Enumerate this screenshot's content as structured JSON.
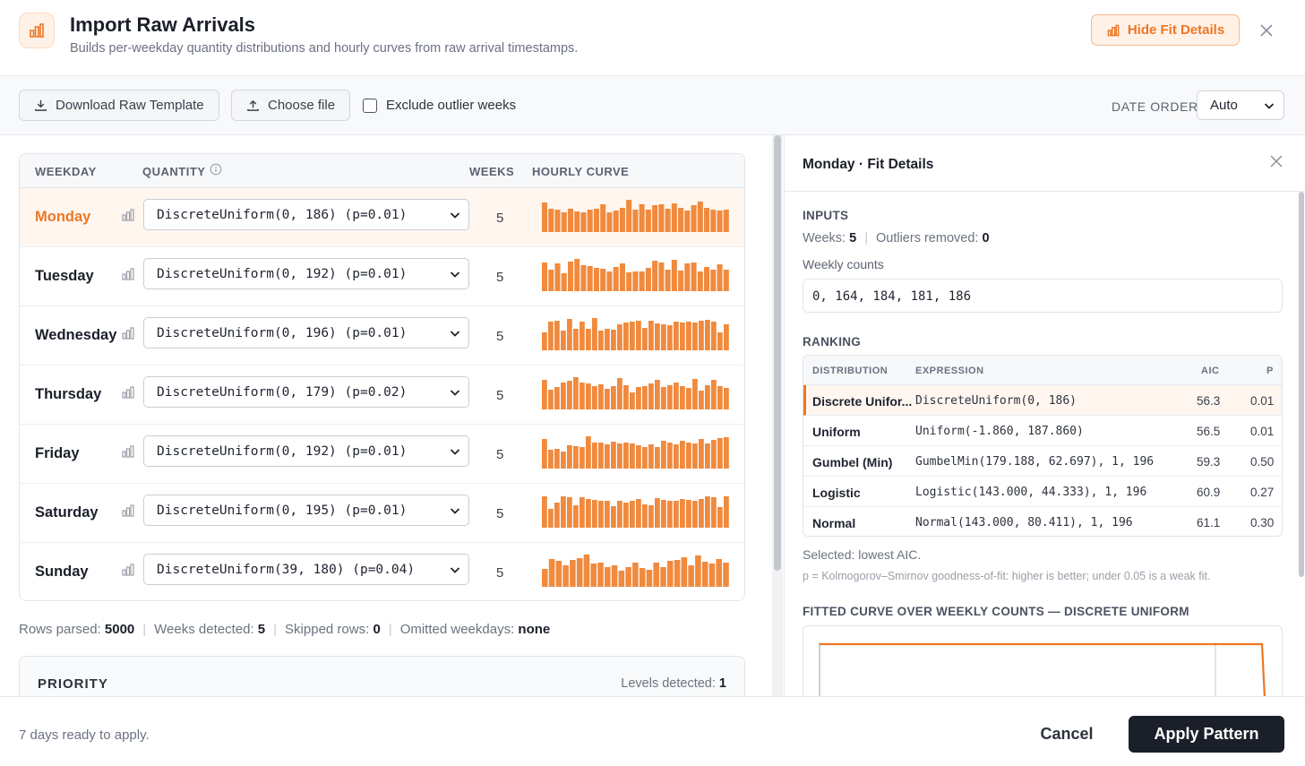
{
  "header": {
    "title": "Import Raw Arrivals",
    "subtitle": "Builds per-weekday quantity distributions and hourly curves from raw arrival timestamps.",
    "hide_fit_label": "Hide Fit Details",
    "icon": "bar-chart-icon",
    "accent": "#ee7623"
  },
  "toolbar": {
    "download_label": "Download Raw Template",
    "choose_label": "Choose file",
    "exclude_label": "Exclude outlier weeks",
    "exclude_checked": false,
    "date_order_label": "DATE ORDER",
    "date_order_value": "Auto"
  },
  "table": {
    "headers": {
      "weekday": "WEEKDAY",
      "quantity": "QUANTITY",
      "weeks": "WEEKS",
      "curve": "HOURLY CURVE"
    },
    "rows": [
      {
        "day": "Monday",
        "dist": "DiscreteUniform(0, 186) (p=0.01)",
        "weeks": "5",
        "active": true,
        "curve": [
          0.92,
          0.72,
          0.7,
          0.6,
          0.72,
          0.64,
          0.6,
          0.7,
          0.72,
          0.86,
          0.62,
          0.66,
          0.76,
          1.0,
          0.7,
          0.86,
          0.7,
          0.82,
          0.86,
          0.72,
          0.9,
          0.76,
          0.66,
          0.84,
          0.94,
          0.74,
          0.7,
          0.66,
          0.7
        ]
      },
      {
        "day": "Tuesday",
        "dist": "DiscreteUniform(0, 192) (p=0.01)",
        "weeks": "5",
        "active": false,
        "curve": [
          0.88,
          0.66,
          0.86,
          0.56,
          0.92,
          1.0,
          0.8,
          0.78,
          0.72,
          0.7,
          0.62,
          0.76,
          0.86,
          0.58,
          0.6,
          0.62,
          0.72,
          0.94,
          0.88,
          0.66,
          0.96,
          0.64,
          0.86,
          0.88,
          0.6,
          0.74,
          0.68,
          0.82,
          0.66
        ]
      },
      {
        "day": "Wednesday",
        "dist": "DiscreteUniform(0, 196) (p=0.01)",
        "weeks": "5",
        "active": false,
        "curve": [
          0.56,
          0.88,
          0.92,
          0.6,
          0.96,
          0.68,
          0.9,
          0.66,
          1.0,
          0.62,
          0.66,
          0.64,
          0.8,
          0.86,
          0.9,
          0.92,
          0.7,
          0.92,
          0.84,
          0.8,
          0.78,
          0.9,
          0.86,
          0.9,
          0.86,
          0.92,
          0.94,
          0.88,
          0.56,
          0.8
        ]
      },
      {
        "day": "Thursday",
        "dist": "DiscreteUniform(0, 179) (p=0.02)",
        "weeks": "5",
        "active": false,
        "curve": [
          0.92,
          0.62,
          0.7,
          0.82,
          0.9,
          1.0,
          0.82,
          0.8,
          0.72,
          0.78,
          0.64,
          0.72,
          0.98,
          0.76,
          0.52,
          0.7,
          0.72,
          0.8,
          0.92,
          0.7,
          0.76,
          0.82,
          0.72,
          0.66,
          0.94,
          0.58,
          0.76,
          0.92,
          0.72,
          0.66
        ]
      },
      {
        "day": "Friday",
        "dist": "DiscreteUniform(0, 192) (p=0.01)",
        "weeks": "5",
        "active": false,
        "curve": [
          0.92,
          0.58,
          0.62,
          0.54,
          0.72,
          0.7,
          0.66,
          1.0,
          0.8,
          0.8,
          0.76,
          0.82,
          0.78,
          0.8,
          0.78,
          0.72,
          0.66,
          0.74,
          0.66,
          0.86,
          0.8,
          0.74,
          0.86,
          0.8,
          0.78,
          0.92,
          0.78,
          0.88,
          0.94,
          0.98
        ]
      },
      {
        "day": "Saturday",
        "dist": "DiscreteUniform(0, 195) (p=0.01)",
        "weeks": "5",
        "active": false,
        "curve": [
          0.98,
          0.58,
          0.78,
          0.96,
          0.94,
          0.7,
          0.94,
          0.9,
          0.86,
          0.84,
          0.82,
          0.68,
          0.84,
          0.78,
          0.82,
          0.88,
          0.72,
          0.7,
          0.92,
          0.86,
          0.84,
          0.82,
          0.9,
          0.86,
          0.84,
          0.88,
          0.98,
          0.94,
          0.64,
          0.96
        ]
      },
      {
        "day": "Sunday",
        "dist": "DiscreteUniform(39, 180) (p=0.04)",
        "weeks": "5",
        "active": false,
        "curve": [
          0.56,
          0.86,
          0.8,
          0.68,
          0.84,
          0.9,
          1.0,
          0.72,
          0.76,
          0.62,
          0.68,
          0.5,
          0.6,
          0.74,
          0.58,
          0.52,
          0.74,
          0.62,
          0.8,
          0.84,
          0.92,
          0.66,
          0.96,
          0.78,
          0.72,
          0.86,
          0.76
        ]
      }
    ]
  },
  "stats": {
    "rows_label": "Rows parsed:",
    "rows_value": "5000",
    "weeks_label": "Weeks detected:",
    "weeks_value": "5",
    "skipped_label": "Skipped rows:",
    "skipped_value": "0",
    "omitted_label": "Omitted weekdays:",
    "omitted_value": "none"
  },
  "priority": {
    "title": "PRIORITY",
    "levels_label": "Levels detected:",
    "levels_value": "1"
  },
  "fit_details": {
    "title": "Monday · Fit Details",
    "inputs_title": "INPUTS",
    "weeks_label": "Weeks:",
    "weeks_value": "5",
    "outliers_label": "Outliers removed:",
    "outliers_value": "0",
    "weekly_counts_label": "Weekly counts",
    "weekly_counts": "0, 164, 184, 181, 186",
    "ranking_title": "RANKING",
    "ranking_headers": {
      "distribution": "DISTRIBUTION",
      "expression": "EXPRESSION",
      "aic": "AIC",
      "p": "P"
    },
    "ranking": [
      {
        "name": "Discrete Unifor...",
        "expr": "DiscreteUniform(0, 186)",
        "aic": "56.3",
        "p": "0.01",
        "selected": true
      },
      {
        "name": "Uniform",
        "expr": "Uniform(-1.860, 187.860)",
        "aic": "56.5",
        "p": "0.01",
        "selected": false
      },
      {
        "name": "Gumbel (Min)",
        "expr": "GumbelMin(179.188, 62.697), 1, 196",
        "aic": "59.3",
        "p": "0.50",
        "selected": false
      },
      {
        "name": "Logistic",
        "expr": "Logistic(143.000, 44.333), 1, 196",
        "aic": "60.9",
        "p": "0.27",
        "selected": false
      },
      {
        "name": "Normal",
        "expr": "Normal(143.000, 80.411), 1, 196",
        "aic": "61.1",
        "p": "0.30",
        "selected": false
      }
    ],
    "selected_note": "Selected: lowest AIC.",
    "ks_note": "p = Kolmogorov–Smirnov goodness-of-fit: higher is better; under 0.05 is a weak fit.",
    "fit_curve_title": "FITTED CURVE OVER WEEKLY COUNTS — DISCRETE UNIFORM"
  },
  "footer": {
    "status": "7 days ready to apply.",
    "cancel_label": "Cancel",
    "apply_label": "Apply Pattern"
  }
}
